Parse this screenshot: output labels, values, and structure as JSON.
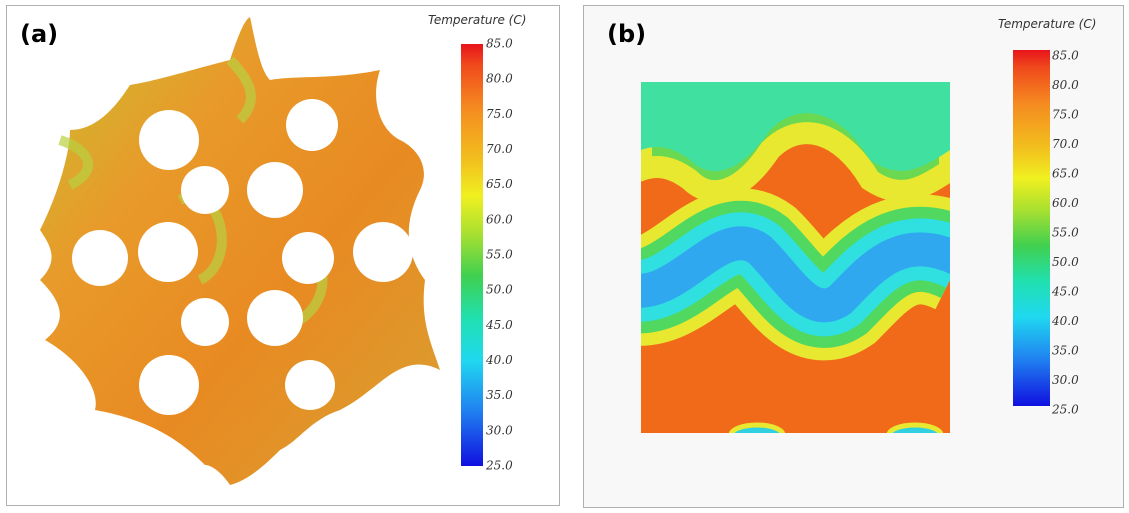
{
  "panels": [
    {
      "label": "(a)",
      "colorbar": {
        "title": "Temperature (C)",
        "ticks": [
          "85.0",
          "80.0",
          "75.0",
          "70.0",
          "65.0",
          "60.0",
          "55.0",
          "50.0",
          "45.0",
          "40.0",
          "35.0",
          "30.0",
          "25.0"
        ]
      }
    },
    {
      "label": "(b)",
      "colorbar": {
        "title": "Temperature (C)",
        "ticks": [
          "85.0",
          "80.0",
          "75.0",
          "70.0",
          "65.0",
          "60.0",
          "55.0",
          "50.0",
          "45.0",
          "40.0",
          "35.0",
          "30.0",
          "25.0"
        ]
      }
    }
  ]
}
